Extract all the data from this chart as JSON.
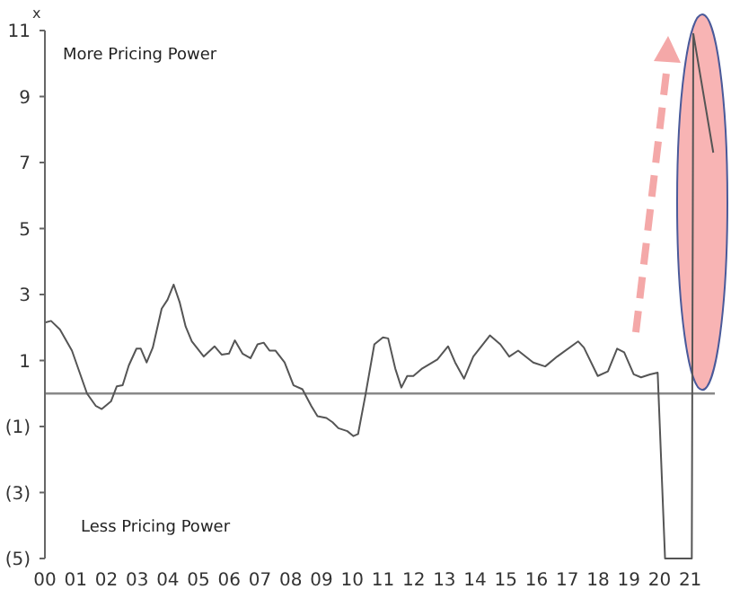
{
  "chart_data": {
    "type": "line",
    "ylabel": "x",
    "annotations": [
      "More Pricing Power",
      "Less Pricing Power"
    ],
    "x": [
      0,
      0.2,
      0.49,
      0.88,
      1.37,
      1.66,
      1.85,
      2.15,
      2.34,
      2.53,
      2.73,
      2.98,
      3.12,
      3.31,
      3.51,
      3.8,
      3.99,
      4.19,
      4.39,
      4.58,
      4.78,
      5.17,
      5.52,
      5.75,
      5.99,
      6.18,
      6.43,
      6.69,
      6.92,
      7.12,
      7.31,
      7.5,
      7.8,
      8.09,
      8.38,
      8.67,
      8.87,
      9.16,
      9.36,
      9.55,
      9.84,
      10.04,
      10.19,
      10.43,
      10.72,
      11.0,
      11.17,
      11.4,
      11.6,
      11.79,
      11.99,
      12.28,
      12.77,
      13.12,
      13.35,
      13.64,
      13.94,
      14.48,
      14.82,
      15.11,
      15.4,
      15.89,
      16.28,
      16.67,
      17.35,
      17.54,
      17.99,
      18.32,
      18.62,
      18.85,
      19.16,
      19.4,
      19.69,
      19.94,
      20.18,
      21.05,
      21.1,
      21.75
    ],
    "series": [
      {
        "color": "#555555",
        "values": [
          2.15,
          2.2,
          1.94,
          1.3,
          0,
          -0.38,
          -0.47,
          -0.24,
          0.22,
          0.25,
          0.85,
          1.36,
          1.36,
          0.94,
          1.39,
          2.57,
          2.84,
          3.3,
          2.75,
          2.03,
          1.58,
          1.12,
          1.43,
          1.18,
          1.21,
          1.61,
          1.21,
          1.07,
          1.49,
          1.54,
          1.3,
          1.3,
          0.94,
          0.25,
          0.13,
          -0.38,
          -0.69,
          -0.74,
          -0.87,
          -1.05,
          -1.14,
          -1.29,
          -1.23,
          -0.05,
          1.49,
          1.7,
          1.67,
          0.76,
          0.18,
          0.53,
          0.53,
          0.76,
          1.03,
          1.43,
          0.94,
          0.45,
          1.12,
          1.76,
          1.49,
          1.12,
          1.3,
          0.94,
          0.82,
          1.12,
          1.58,
          1.39,
          0.53,
          0.67,
          1.36,
          1.25,
          0.58,
          0.49,
          0.58,
          0.63,
          -5,
          -5,
          10.9,
          7.3
        ]
      }
    ],
    "xlim": [
      0,
      21.8
    ],
    "xticks": [
      {
        "value": 0,
        "label": "00"
      },
      {
        "value": 1,
        "label": "01"
      },
      {
        "value": 2,
        "label": "02"
      },
      {
        "value": 3,
        "label": "03"
      },
      {
        "value": 4,
        "label": "04"
      },
      {
        "value": 5,
        "label": "05"
      },
      {
        "value": 6,
        "label": "06"
      },
      {
        "value": 7,
        "label": "07"
      },
      {
        "value": 8,
        "label": "08"
      },
      {
        "value": 9,
        "label": "09"
      },
      {
        "value": 10,
        "label": "10"
      },
      {
        "value": 11,
        "label": "11"
      },
      {
        "value": 12,
        "label": "12"
      },
      {
        "value": 13,
        "label": "13"
      },
      {
        "value": 14,
        "label": "14"
      },
      {
        "value": 15,
        "label": "15"
      },
      {
        "value": 16,
        "label": "16"
      },
      {
        "value": 17,
        "label": "17"
      },
      {
        "value": 18,
        "label": "18"
      },
      {
        "value": 19,
        "label": "19"
      },
      {
        "value": 20,
        "label": "20"
      },
      {
        "value": 21,
        "label": "21"
      }
    ],
    "ylim": [
      -5,
      11
    ],
    "yticks": [
      {
        "value": -5,
        "label": "(5)"
      },
      {
        "value": -3,
        "label": "(3)"
      },
      {
        "value": -1,
        "label": "(1)"
      },
      1,
      3,
      5,
      7,
      9,
      11
    ],
    "ref_lines": [
      {
        "axis": "y",
        "value": 0,
        "color": "#888888"
      }
    ],
    "grid": false,
    "marker": "none",
    "line_style": "solid"
  }
}
